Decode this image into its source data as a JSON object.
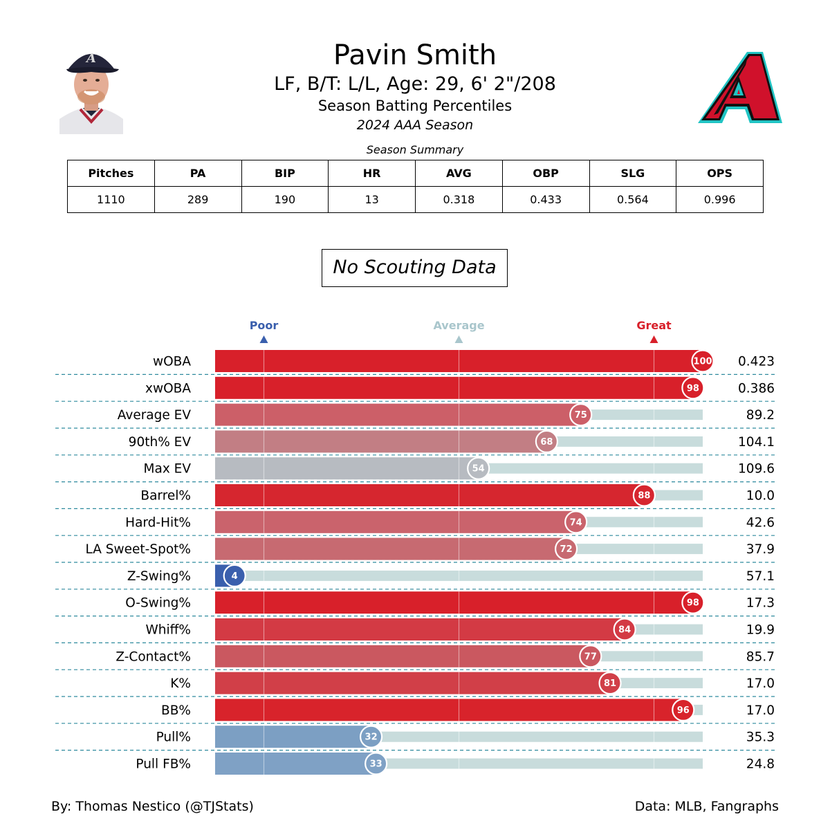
{
  "header": {
    "name": "Pavin Smith",
    "info": "LF, B/T: L/L, Age: 29, 6' 2\"/208",
    "subtitle": "Season Batting Percentiles",
    "season": "2024 AAA Season"
  },
  "headshot": {
    "cap_letter": "A"
  },
  "summary": {
    "caption": "Season Summary",
    "headers": [
      "Pitches",
      "PA",
      "BIP",
      "HR",
      "AVG",
      "OBP",
      "SLG",
      "OPS"
    ],
    "values": [
      "1110",
      "289",
      "190",
      "13",
      "0.318",
      "0.433",
      "0.564",
      "0.996"
    ]
  },
  "scouting": {
    "text": "No Scouting Data"
  },
  "scale": {
    "poor": {
      "label": "Poor",
      "color": "#3a5fad"
    },
    "average": {
      "label": "Average",
      "color": "#a9c6cc"
    },
    "great": {
      "label": "Great",
      "color": "#d8202a"
    }
  },
  "chart_data": {
    "type": "bar",
    "orientation": "horizontal",
    "xlim": [
      0,
      100
    ],
    "reference_lines": [
      10,
      50,
      90
    ],
    "categories": [
      "wOBA",
      "xwOBA",
      "Average EV",
      "90th% EV",
      "Max EV",
      "Barrel%",
      "Hard-Hit%",
      "LA Sweet-Spot%",
      "Z-Swing%",
      "O-Swing%",
      "Whiff%",
      "Z-Contact%",
      "K%",
      "BB%",
      "Pull%",
      "Pull FB%"
    ],
    "percentiles": [
      100,
      98,
      75,
      68,
      54,
      88,
      74,
      72,
      4,
      98,
      84,
      77,
      81,
      96,
      32,
      33
    ],
    "stat_values": [
      "0.423",
      "0.386",
      "89.2",
      "104.1",
      "109.6",
      "10.0",
      "42.6",
      "37.9",
      "57.1",
      "17.3",
      "19.9",
      "85.7",
      "17.0",
      "17.0",
      "35.3",
      "24.8"
    ],
    "bar_colors": [
      "#d8202a",
      "#d8202a",
      "#cc5f68",
      "#c27e84",
      "#b7bbc1",
      "#d6262f",
      "#ca636c",
      "#c76a71",
      "#3a5fad",
      "#d8202a",
      "#d33a44",
      "#ca5860",
      "#d13f48",
      "#d8232b",
      "#7c9fc3",
      "#7fa1c5"
    ],
    "track_color": "#c8dcdc",
    "divider_color": "#2e8a9e"
  },
  "footer": {
    "left": "By: Thomas Nestico (@TJStats)",
    "right": "Data: MLB, Fangraphs"
  }
}
